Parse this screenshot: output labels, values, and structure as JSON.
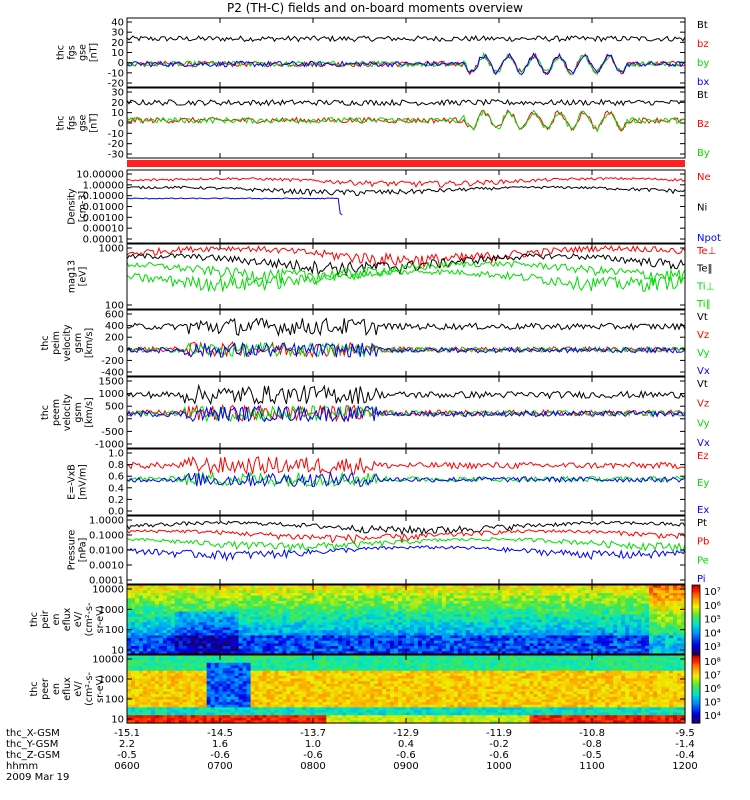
{
  "title": "P2 (TH-C) fields and on-board moments overview",
  "date_label": "2009 Mar 19",
  "footer_rows": [
    {
      "label": "thc_X-GSM",
      "values": [
        "-15.1",
        "-14.5",
        "-13.7",
        "-12.9",
        "-11.9",
        "-10.8",
        "-9.5"
      ]
    },
    {
      "label": "thc_Y-GSM",
      "values": [
        "2.2",
        "1.6",
        "1.0",
        "0.4",
        "-0.2",
        "-0.8",
        "-1.4"
      ]
    },
    {
      "label": "thc_Z-GSM",
      "values": [
        "-0.5",
        "-0.6",
        "-0.6",
        "-0.6",
        "-0.6",
        "-0.5",
        "-0.4"
      ]
    },
    {
      "label": "hhmm",
      "values": [
        "0600",
        "0700",
        "0800",
        "0900",
        "1000",
        "1100",
        "1200"
      ]
    }
  ],
  "colors": {
    "black": "#000000",
    "red": "#ff0000",
    "green": "#00dd00",
    "blue": "#0000ff"
  },
  "chart_data": [
    {
      "type": "line",
      "ylabel": [
        "thc",
        "fgs",
        "gse",
        "[nT]"
      ],
      "yticks": [
        "40",
        "30",
        "20",
        "10",
        "0",
        "-10",
        "-20"
      ],
      "ylim": [
        -20,
        40
      ],
      "x": [
        "0600",
        "0700",
        "0800",
        "0900",
        "1000",
        "1100",
        "1200"
      ],
      "series": [
        {
          "name": "Bt",
          "color": "#000000"
        },
        {
          "name": "bz",
          "color": "#ff0000"
        },
        {
          "name": "by",
          "color": "#00dd00"
        },
        {
          "name": "bx",
          "color": "#0000ff"
        }
      ]
    },
    {
      "type": "line",
      "ylabel": [
        "thc",
        "fgs",
        "gse",
        "[nT]"
      ],
      "yticks": [
        "30",
        "20",
        "10",
        "0",
        "-10",
        "-20",
        "-30"
      ],
      "ylim": [
        -35,
        30
      ],
      "series": [
        {
          "name": "Bt",
          "color": "#000000"
        },
        {
          "name": "Bz",
          "color": "#ff0000"
        },
        {
          "name": "By",
          "color": "#00dd00"
        }
      ]
    },
    {
      "type": "line",
      "ylabel": [
        "Density",
        "[cm-3]"
      ],
      "yticks": [
        "10.00000",
        "1.00000",
        "0.10000",
        "0.01000",
        "0.00100",
        "0.00010",
        "0.00001"
      ],
      "ylim": [
        1e-05,
        10
      ],
      "yscale": "log",
      "series": [
        {
          "name": "Ne",
          "color": "#ff0000"
        },
        {
          "name": "Ni",
          "color": "#000000"
        },
        {
          "name": "Npot",
          "color": "#0000ff"
        }
      ]
    },
    {
      "type": "line",
      "ylabel": [
        "mag13",
        "[eV]"
      ],
      "yticks": [
        "1000",
        "100"
      ],
      "ylim": [
        100,
        20000
      ],
      "yscale": "log",
      "series": [
        {
          "name": "Te⊥",
          "color": "#ff0000"
        },
        {
          "name": "Te‖",
          "color": "#000000"
        },
        {
          "name": "Ti⊥",
          "color": "#00dd00"
        },
        {
          "name": "Ti‖",
          "color": "#00dd00"
        }
      ]
    },
    {
      "type": "line",
      "ylabel": [
        "thc",
        "peim",
        "velocity",
        "gsm",
        "[km/s]"
      ],
      "yticks": [
        "600",
        "400",
        "200",
        "0",
        "-200",
        "-400"
      ],
      "ylim": [
        -400,
        600
      ],
      "series": [
        {
          "name": "Vt",
          "color": "#000000"
        },
        {
          "name": "Vz",
          "color": "#ff0000"
        },
        {
          "name": "Vy",
          "color": "#00dd00"
        },
        {
          "name": "Vx",
          "color": "#0000ff"
        }
      ]
    },
    {
      "type": "line",
      "ylabel": [
        "thc",
        "peem",
        "velocity",
        "gsm",
        "[km/s]"
      ],
      "yticks": [
        "1500",
        "1000",
        "500",
        "0",
        "-500",
        "-1000"
      ],
      "ylim": [
        -1500,
        1500
      ],
      "series": [
        {
          "name": "Vt",
          "color": "#000000"
        },
        {
          "name": "Vz",
          "color": "#ff0000"
        },
        {
          "name": "Vy",
          "color": "#00dd00"
        },
        {
          "name": "Vx",
          "color": "#0000ff"
        }
      ]
    },
    {
      "type": "line",
      "ylabel": [
        "E=-VxB",
        "[mV/m]"
      ],
      "yticks": [
        "1.0",
        "0.8",
        "0.6",
        "0.4",
        "0.2",
        "0.0"
      ],
      "ylim": [
        0,
        1
      ],
      "series": [
        {
          "name": "Ez",
          "color": "#ff0000"
        },
        {
          "name": "Ey",
          "color": "#00dd00"
        },
        {
          "name": "Ex",
          "color": "#0000ff"
        }
      ]
    },
    {
      "type": "line",
      "ylabel": [
        "Pressure",
        "[nPa]"
      ],
      "yticks": [
        "1.0000",
        "0.1000",
        "0.0100",
        "0.0010",
        "0.0001"
      ],
      "ylim": [
        0.0001,
        1
      ],
      "yscale": "log",
      "series": [
        {
          "name": "Pt",
          "color": "#000000"
        },
        {
          "name": "Pb",
          "color": "#ff0000"
        },
        {
          "name": "Pe",
          "color": "#00dd00"
        },
        {
          "name": "Pi",
          "color": "#0000ff"
        }
      ]
    },
    {
      "type": "heatmap",
      "ylabel": [
        "thc",
        "peir",
        "en",
        "eflux",
        "eV/",
        "(cm²-s-",
        "sr-eV)"
      ],
      "yticks": [
        "10000",
        "1000",
        "100",
        "10"
      ],
      "ylim": [
        10,
        20000
      ],
      "yscale": "log",
      "colorbar": [
        "10⁷",
        "10⁶",
        "10⁵",
        "10⁴",
        "10³"
      ]
    },
    {
      "type": "heatmap",
      "ylabel": [
        "thc",
        "peer",
        "en",
        "eflux",
        "eV/",
        "(cm²-s-",
        "sr-eV)"
      ],
      "yticks": [
        "10000",
        "1000",
        "100",
        "10"
      ],
      "ylim": [
        10,
        20000
      ],
      "yscale": "log",
      "colorbar": [
        "10⁸",
        "10⁷",
        "10⁶",
        "10⁵",
        "10⁴"
      ]
    }
  ]
}
